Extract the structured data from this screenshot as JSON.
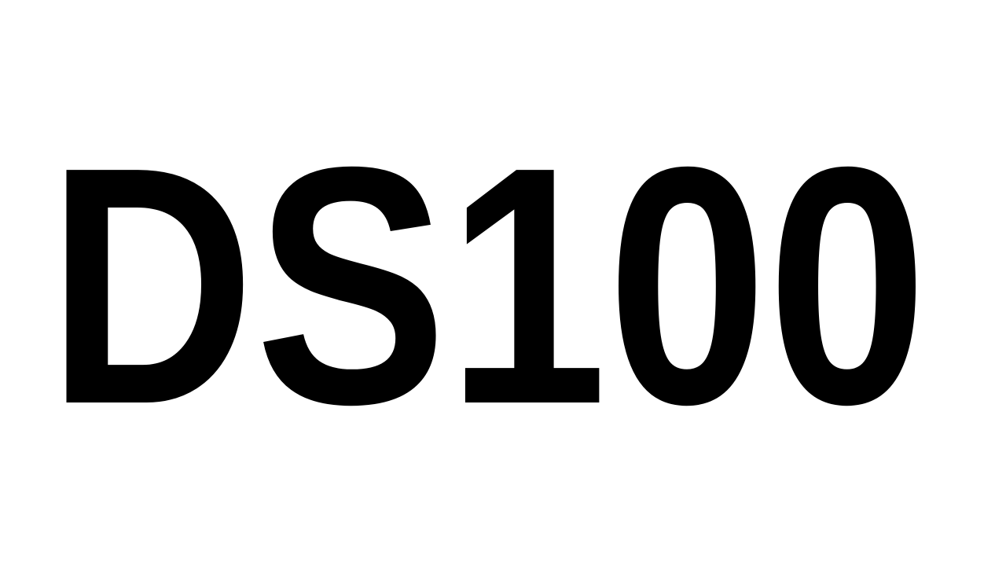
{
  "title": {
    "text": "DS100",
    "color": "#000000"
  },
  "background": {
    "color": "#ffffff"
  }
}
